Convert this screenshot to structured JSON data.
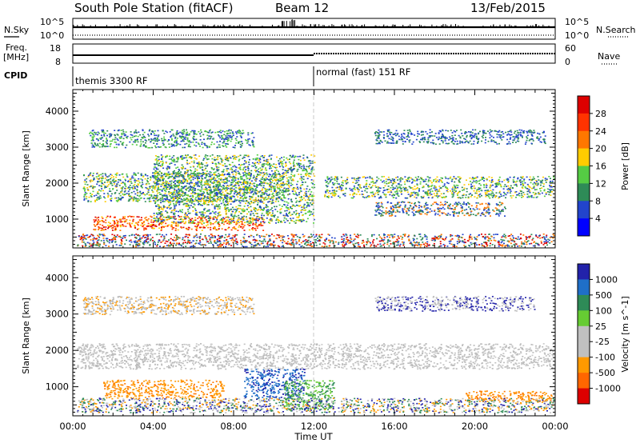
{
  "header": {
    "station": "South Pole Station (fitACF)",
    "beam": "Beam 12",
    "date": "13/Feb/2015"
  },
  "panels": {
    "nsky_label": "N.Sky",
    "nsky_ticks": [
      "10^5",
      "10^0"
    ],
    "nsearch_label": "N.Search",
    "nsearch_ticks": [
      "10^5",
      "10^0"
    ],
    "freq_label": "Freq.",
    "freq_unit": "[MHz]",
    "freq_ticks": [
      "18",
      "8"
    ],
    "nave_label": "Nave",
    "nave_ticks": [
      "60",
      "0"
    ],
    "cpid_label": "CPID",
    "cpid_segments": [
      {
        "label": "themis 3300 RF",
        "start_hour": 0
      },
      {
        "label": "normal (fast) 151 RF",
        "start_hour": 12
      }
    ]
  },
  "chart_data": [
    {
      "type": "heatmap",
      "title": "",
      "xlabel": "Time UT",
      "ylabel": "Slant Range [km]",
      "xlim_hours": [
        0,
        24
      ],
      "ylim": [
        200,
        4600
      ],
      "x_ticks": [
        "00:00",
        "04:00",
        "08:00",
        "12:00",
        "16:00",
        "20:00",
        "00:00"
      ],
      "y_ticks": [
        1000,
        2000,
        3000,
        4000
      ],
      "colorbar": {
        "label": "Power [dB]",
        "ticks": [
          "28",
          "24",
          "20",
          "16",
          "12",
          "8",
          "4"
        ],
        "colors": [
          "#dd0000",
          "#ff3300",
          "#ff7700",
          "#ffcc00",
          "#55cc44",
          "#2e8b57",
          "#2244cc",
          "#0000ff"
        ]
      },
      "scatter_bands": [
        {
          "t0": 0.5,
          "t1": 10.5,
          "r0": 1500,
          "r1": 2300,
          "colors": [
            "#55cc44",
            "#ffcc00",
            "#2e8b57",
            "#2244cc"
          ]
        },
        {
          "t0": 12.5,
          "t1": 23.9,
          "r0": 1600,
          "r1": 2200,
          "colors": [
            "#2244cc",
            "#2e8b57",
            "#55cc44",
            "#ffcc00"
          ]
        },
        {
          "t0": 1.0,
          "t1": 9.5,
          "r0": 700,
          "r1": 1100,
          "colors": [
            "#ff3300",
            "#ff7700",
            "#dd0000",
            "#ffcc00"
          ]
        },
        {
          "t0": 0.8,
          "t1": 9.0,
          "r0": 3000,
          "r1": 3500,
          "colors": [
            "#2244cc",
            "#2e8b57",
            "#55cc44"
          ]
        },
        {
          "t0": 4.0,
          "t1": 12.0,
          "r0": 900,
          "r1": 2800,
          "colors": [
            "#55cc44",
            "#2e8b57",
            "#ffcc00",
            "#2244cc"
          ]
        },
        {
          "t0": 0.2,
          "t1": 23.9,
          "r0": 250,
          "r1": 600,
          "colors": [
            "#2244cc",
            "#dd0000",
            "#ff7700",
            "#2e8b57"
          ]
        },
        {
          "t0": 15.0,
          "t1": 21.5,
          "r0": 1100,
          "r1": 1500,
          "colors": [
            "#2244cc",
            "#2e8b57",
            "#ff7700"
          ]
        },
        {
          "t0": 15.0,
          "t1": 23.5,
          "r0": 3100,
          "r1": 3500,
          "colors": [
            "#2244cc",
            "#2e8b57"
          ]
        }
      ]
    },
    {
      "type": "heatmap",
      "title": "",
      "xlabel": "Time UT",
      "ylabel": "Slant Range [km]",
      "xlim_hours": [
        0,
        24
      ],
      "ylim": [
        200,
        4600
      ],
      "x_ticks": [
        "00:00",
        "04:00",
        "08:00",
        "12:00",
        "16:00",
        "20:00",
        "00:00"
      ],
      "y_ticks": [
        1000,
        2000,
        3000,
        4000
      ],
      "colorbar": {
        "label": "Velocity [m s^-1]",
        "ticks": [
          "1000",
          "500",
          "100",
          "25",
          "-25",
          "-100",
          "-500",
          "-1000"
        ],
        "colors": [
          "#2222aa",
          "#1f6fc8",
          "#2e8b57",
          "#66cc33",
          "#c0c0c0",
          "#c0c0c0",
          "#ff9900",
          "#ff6600",
          "#dd0000"
        ]
      },
      "scatter_bands": [
        {
          "t0": 0.2,
          "t1": 23.9,
          "r0": 1500,
          "r1": 2200,
          "colors": [
            "#c0c0c0",
            "#c8c8c8",
            "#b8b8b8"
          ]
        },
        {
          "t0": 1.5,
          "t1": 7.5,
          "r0": 700,
          "r1": 1200,
          "colors": [
            "#ff9900",
            "#ff7700",
            "#ff9900"
          ]
        },
        {
          "t0": 8.5,
          "t1": 11.5,
          "r0": 700,
          "r1": 1500,
          "colors": [
            "#1f6fc8",
            "#2222aa",
            "#1f6fc8"
          ]
        },
        {
          "t0": 10.5,
          "t1": 13.0,
          "r0": 400,
          "r1": 1200,
          "colors": [
            "#2e8b57",
            "#66cc33"
          ]
        },
        {
          "t0": 19.5,
          "t1": 23.8,
          "r0": 600,
          "r1": 900,
          "colors": [
            "#ff9900",
            "#ff7700"
          ]
        },
        {
          "t0": 0.5,
          "t1": 9.0,
          "r0": 3000,
          "r1": 3500,
          "colors": [
            "#c0c0c0",
            "#b8b8b8",
            "#ff9900"
          ]
        },
        {
          "t0": 15.0,
          "t1": 23.0,
          "r0": 3100,
          "r1": 3500,
          "colors": [
            "#c0c0c0",
            "#2222aa"
          ]
        },
        {
          "t0": 0.2,
          "t1": 23.9,
          "r0": 300,
          "r1": 700,
          "colors": [
            "#c0c0c0",
            "#ff9900",
            "#2e8b57",
            "#2222aa"
          ]
        }
      ]
    }
  ]
}
